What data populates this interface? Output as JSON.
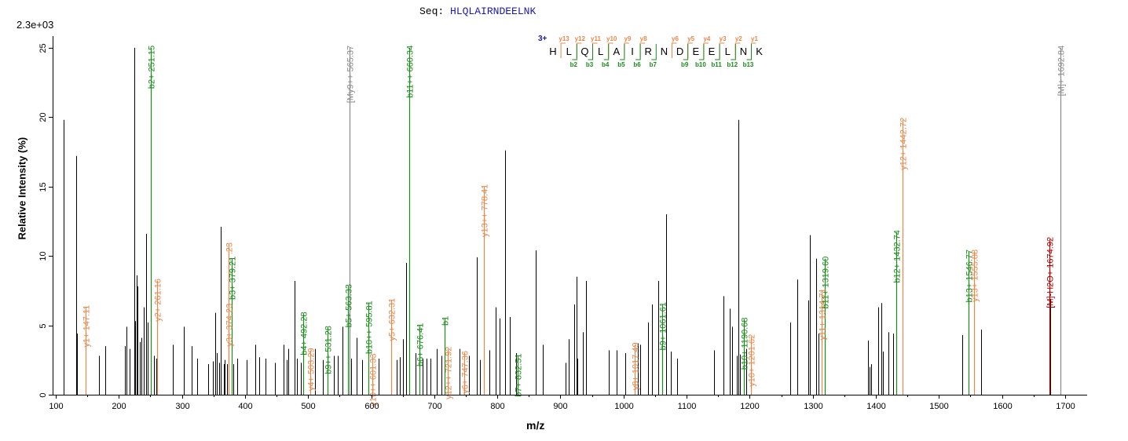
{
  "header": {
    "seq_label": "Seq:",
    "sequence": "HLQLAIRNDEELNK",
    "scale": "2.3e+03",
    "charge": "3+"
  },
  "chart_data": {
    "type": "bar",
    "xlabel": "m/z",
    "ylabel": "Relative  Intensity (%)",
    "xlim": [
      95,
      1735
    ],
    "ylim": [
      0,
      25.5
    ],
    "xticks": [
      100,
      200,
      300,
      400,
      500,
      600,
      700,
      800,
      900,
      1000,
      1100,
      1200,
      1300,
      1400,
      1500,
      1600,
      1700
    ],
    "yticks": [
      0,
      5,
      10,
      15,
      20,
      25
    ],
    "colors": {
      "b_ion": "#1a8a1a",
      "y_ion": "#e8874a",
      "precursor": "#8a8a8a",
      "neutral_loss": "#b00000",
      "unassigned": "#000000"
    },
    "labeled_peaks": [
      {
        "mz": 147.11,
        "intensity": 6.3,
        "label": "y1+ 147.11",
        "ion": "y"
      },
      {
        "mz": 251.15,
        "intensity": 25.0,
        "label": "b2+ 251.15",
        "ion": "b"
      },
      {
        "mz": 261.16,
        "intensity": 8.2,
        "label": "y2+ 261.16",
        "ion": "y"
      },
      {
        "mz": 374.23,
        "intensity": 6.4,
        "label": "y3+ 374.23",
        "ion": "y"
      },
      {
        "mz": 374.23,
        "intensity": 10.8,
        "label": ".23",
        "ion": "y"
      },
      {
        "mz": 379.21,
        "intensity": 9.8,
        "label": "b3+ 379.21",
        "ion": "b"
      },
      {
        "mz": 492.28,
        "intensity": 5.8,
        "label": "b4+ 492.28",
        "ion": "b"
      },
      {
        "mz": 503.29,
        "intensity": 3.2,
        "label": "y4+ 503.29",
        "ion": "y"
      },
      {
        "mz": 531.28,
        "intensity": 4.8,
        "label": "b9++ 531.28",
        "ion": "b"
      },
      {
        "mz": 563.33,
        "intensity": 7.8,
        "label": "b5+ 563.33",
        "ion": "b"
      },
      {
        "mz": 565.37,
        "intensity": 25.0,
        "label": "[My9++ 565.37",
        "ion": "precursor"
      },
      {
        "mz": 595.81,
        "intensity": 6.6,
        "label": "b10++ 595.81",
        "ion": "b"
      },
      {
        "mz": 601.33,
        "intensity": 2.8,
        "label": "y10++ 601.33",
        "ion": "y"
      },
      {
        "mz": 632.31,
        "intensity": 6.8,
        "label": "y5+ 632.31",
        "ion": "y"
      },
      {
        "mz": 660.34,
        "intensity": 25.0,
        "label": "b11++ 660.34",
        "ion": "b"
      },
      {
        "mz": 676.41,
        "intensity": 5.0,
        "label": "b6+ 676.41",
        "ion": "b"
      },
      {
        "mz": 716.8,
        "intensity": 5.5,
        "label": "b1",
        "ion": "b"
      },
      {
        "mz": 721.92,
        "intensity": 3.3,
        "label": "y12++ 721.92",
        "ion": "y"
      },
      {
        "mz": 747.36,
        "intensity": 3.0,
        "label": "y6+ 747.36",
        "ion": "y"
      },
      {
        "mz": 778.41,
        "intensity": 15.0,
        "label": "y13++ 778.41",
        "ion": "y"
      },
      {
        "mz": 832.51,
        "intensity": 2.8,
        "label": "b7+ 832.51",
        "ion": "b"
      },
      {
        "mz": 1017.49,
        "intensity": 3.6,
        "label": "y8+ 1017.49",
        "ion": "y"
      },
      {
        "mz": 1061.61,
        "intensity": 6.5,
        "label": "b9+ 1061.61",
        "ion": "b"
      },
      {
        "mz": 1190.68,
        "intensity": 5.4,
        "label": "b10+ 1190.68",
        "ion": "b"
      },
      {
        "mz": 1201.62,
        "intensity": 4.2,
        "label": "y10+ 1201.62",
        "ion": "y"
      },
      {
        "mz": 1314.71,
        "intensity": 7.5,
        "label": "y11+ 1314.71",
        "ion": "y"
      },
      {
        "mz": 1319.6,
        "intensity": 9.8,
        "label": "b11+ 1319.60",
        "ion": "b"
      },
      {
        "mz": 1432.74,
        "intensity": 11.7,
        "label": "b12+ 1432.74",
        "ion": "b"
      },
      {
        "mz": 1442.72,
        "intensity": 19.8,
        "label": "y12+ 1442.72",
        "ion": "y"
      },
      {
        "mz": 1546.77,
        "intensity": 10.3,
        "label": "b13+ 1546.77",
        "ion": "b"
      },
      {
        "mz": 1555.88,
        "intensity": 10.3,
        "label": "y13+ 1555.88",
        "ion": "y"
      },
      {
        "mz": 1674.92,
        "intensity": 11.2,
        "label": "[M]-H2O+ 1674.92",
        "ion": "neutral_loss"
      },
      {
        "mz": 1692.84,
        "intensity": 25.0,
        "label": "[M]+ 1692.84",
        "ion": "precursor"
      }
    ],
    "unlabeled_peaks": [
      [
        113.0,
        19.8
      ],
      [
        132.0,
        17.2
      ],
      [
        133.0,
        4.4
      ],
      [
        168.0,
        2.8
      ],
      [
        179.0,
        3.5
      ],
      [
        210.0,
        3.5
      ],
      [
        212.0,
        4.9
      ],
      [
        217.0,
        3.3
      ],
      [
        224.5,
        25.0
      ],
      [
        226.0,
        5.3
      ],
      [
        228.0,
        8.6
      ],
      [
        229.0,
        7.8
      ],
      [
        233.0,
        3.8
      ],
      [
        236.0,
        4.1
      ],
      [
        239.0,
        6.3
      ],
      [
        243.0,
        11.6
      ],
      [
        246.0,
        5.2
      ],
      [
        256.0,
        2.8
      ],
      [
        259.0,
        2.6
      ],
      [
        286.0,
        3.6
      ],
      [
        303.0,
        4.9
      ],
      [
        315.0,
        3.5
      ],
      [
        324.0,
        2.6
      ],
      [
        341.0,
        2.2
      ],
      [
        349.0,
        2.4
      ],
      [
        353.0,
        5.9
      ],
      [
        355.0,
        3.0
      ],
      [
        359.0,
        2.3
      ],
      [
        362.0,
        12.1
      ],
      [
        366.0,
        2.2
      ],
      [
        368.0,
        2.5
      ],
      [
        372.0,
        2.2
      ],
      [
        381.0,
        2.2
      ],
      [
        388.0,
        2.6
      ],
      [
        402.0,
        2.5
      ],
      [
        416.0,
        3.6
      ],
      [
        423.0,
        2.7
      ],
      [
        432.0,
        2.6
      ],
      [
        447.0,
        2.3
      ],
      [
        461.0,
        3.6
      ],
      [
        466.0,
        2.5
      ],
      [
        469.0,
        3.3
      ],
      [
        479.0,
        8.2
      ],
      [
        482.0,
        2.6
      ],
      [
        489.0,
        2.3
      ],
      [
        511.0,
        3.3
      ],
      [
        523.0,
        2.5
      ],
      [
        541.0,
        2.8
      ],
      [
        547.0,
        2.8
      ],
      [
        554.0,
        4.9
      ],
      [
        566.0,
        11.3
      ],
      [
        568.0,
        2.6
      ],
      [
        577.0,
        4.1
      ],
      [
        586.0,
        2.5
      ],
      [
        612.0,
        2.6
      ],
      [
        640.0,
        2.5
      ],
      [
        645.0,
        2.7
      ],
      [
        650.0,
        4.0
      ],
      [
        655.0,
        9.5
      ],
      [
        670.0,
        3.0
      ],
      [
        681.0,
        2.6
      ],
      [
        688.0,
        2.6
      ],
      [
        694.0,
        2.6
      ],
      [
        704.0,
        3.3
      ],
      [
        712.0,
        2.8
      ],
      [
        740.0,
        3.3
      ],
      [
        755.0,
        2.8
      ],
      [
        768.0,
        9.9
      ],
      [
        772.0,
        2.5
      ],
      [
        787.0,
        3.2
      ],
      [
        797.0,
        6.3
      ],
      [
        803.0,
        5.5
      ],
      [
        812.0,
        17.6
      ],
      [
        820.0,
        5.6
      ],
      [
        830.0,
        3.0
      ],
      [
        861.0,
        10.4
      ],
      [
        872.0,
        3.6
      ],
      [
        908.0,
        2.3
      ],
      [
        913.0,
        4.0
      ],
      [
        922.0,
        6.5
      ],
      [
        925.0,
        8.5
      ],
      [
        927.0,
        2.6
      ],
      [
        936.0,
        4.5
      ],
      [
        941.0,
        8.2
      ],
      [
        977.0,
        3.2
      ],
      [
        989.0,
        3.2
      ],
      [
        1003.0,
        3.0
      ],
      [
        1023.0,
        3.7
      ],
      [
        1026.0,
        3.6
      ],
      [
        1039.0,
        5.2
      ],
      [
        1045.0,
        6.5
      ],
      [
        1055.0,
        8.2
      ],
      [
        1067.0,
        13.0
      ],
      [
        1075.0,
        3.1
      ],
      [
        1085.0,
        2.6
      ],
      [
        1144.0,
        3.2
      ],
      [
        1158.0,
        7.1
      ],
      [
        1168.0,
        6.2
      ],
      [
        1172.0,
        4.9
      ],
      [
        1180.0,
        2.8
      ],
      [
        1182.0,
        19.8
      ],
      [
        1184.0,
        2.9
      ],
      [
        1194.0,
        3.3
      ],
      [
        1264.0,
        5.2
      ],
      [
        1276.0,
        8.3
      ],
      [
        1293.0,
        6.8
      ],
      [
        1296.0,
        11.5
      ],
      [
        1306.0,
        9.8
      ],
      [
        1309.0,
        4.4
      ],
      [
        1388.0,
        3.9
      ],
      [
        1390.0,
        2.0
      ],
      [
        1392.0,
        2.2
      ],
      [
        1404.0,
        6.3
      ],
      [
        1409.0,
        6.6
      ],
      [
        1411.0,
        3.1
      ],
      [
        1420.0,
        4.5
      ],
      [
        1428.0,
        4.4
      ],
      [
        1537.0,
        4.3
      ],
      [
        1567.0,
        4.7
      ],
      [
        1676.0,
        6.9
      ]
    ],
    "fragment_map": {
      "y_labels": [
        "y13",
        "y12",
        "y11",
        "y10",
        "y9",
        "y8",
        "",
        "y6",
        "y5",
        "y4",
        "y3",
        "y2",
        "y1"
      ],
      "b_labels": [
        "b2",
        "b3",
        "b4",
        "b5",
        "b6",
        "b7",
        "",
        "b9",
        "b10",
        "b11",
        "b12",
        "b13"
      ]
    }
  }
}
